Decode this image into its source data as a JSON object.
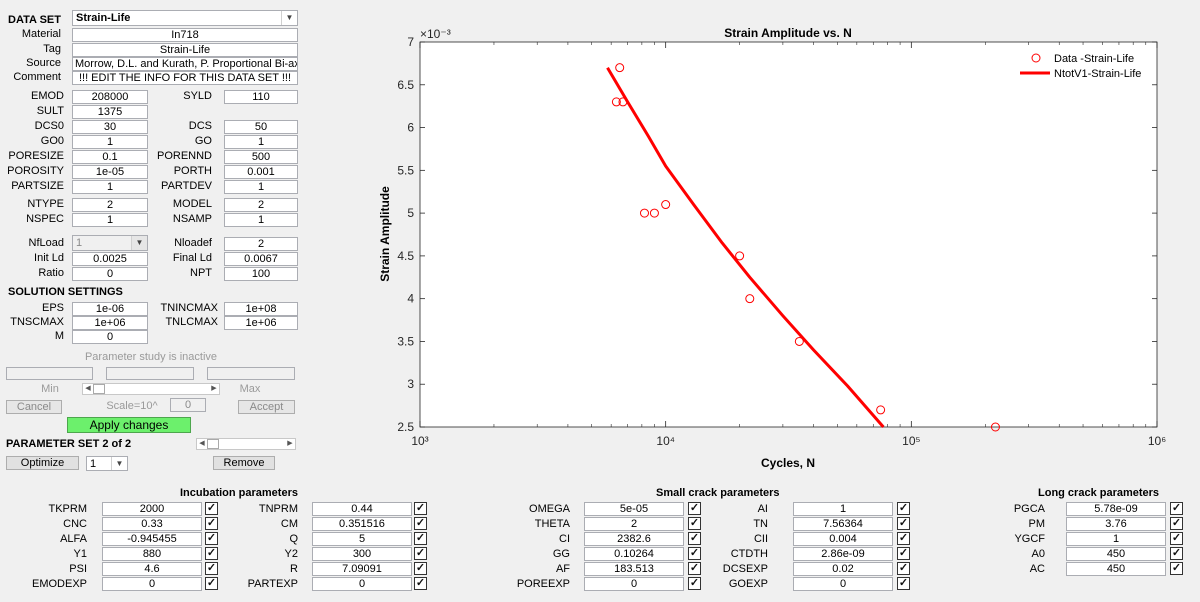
{
  "dataset": {
    "header": "DATA SET",
    "selected": "Strain-Life"
  },
  "info": {
    "material": {
      "label": "Material",
      "value": "In718"
    },
    "tag": {
      "label": "Tag",
      "value": "Strain-Life"
    },
    "source": {
      "label": "Source",
      "value": "Morrow, D.L. and Kurath, P. Proportional Bi-axial t"
    },
    "comment": {
      "label": "Comment",
      "value": "!!! EDIT THE INFO FOR THIS DATA SET !!!"
    }
  },
  "props": {
    "emod": {
      "label": "EMOD",
      "value": "208000"
    },
    "syld": {
      "label": "SYLD",
      "value": "110"
    },
    "sult": {
      "label": "SULT",
      "value": "1375"
    },
    "dcs0": {
      "label": "DCS0",
      "value": "30"
    },
    "dcs": {
      "label": "DCS",
      "value": "50"
    },
    "go0": {
      "label": "GO0",
      "value": "1"
    },
    "go": {
      "label": "GO",
      "value": "1"
    },
    "poresize": {
      "label": "PORESIZE",
      "value": "0.1"
    },
    "porennd": {
      "label": "PORENND",
      "value": "500"
    },
    "porosity": {
      "label": "POROSITY",
      "value": "1e-05"
    },
    "porth": {
      "label": "PORTH",
      "value": "0.001"
    },
    "partsize": {
      "label": "PARTSIZE",
      "value": "1"
    },
    "partdev": {
      "label": "PARTDEV",
      "value": "1"
    },
    "ntype": {
      "label": "NTYPE",
      "value": "2"
    },
    "model": {
      "label": "MODEL",
      "value": "2"
    },
    "nspec": {
      "label": "NSPEC",
      "value": "1"
    },
    "nsamp": {
      "label": "NSAMP",
      "value": "1"
    },
    "nfload": {
      "label": "NfLoad",
      "value": "1"
    },
    "nloadef": {
      "label": "Nloadef",
      "value": "2"
    },
    "initld": {
      "label": "Init Ld",
      "value": "0.0025"
    },
    "finalld": {
      "label": "Final Ld",
      "value": "0.0067"
    },
    "ratio": {
      "label": "Ratio",
      "value": "0"
    },
    "npt": {
      "label": "NPT",
      "value": "100"
    }
  },
  "solution": {
    "header": "SOLUTION SETTINGS",
    "eps": {
      "label": "EPS",
      "value": "1e-06"
    },
    "tnincmax": {
      "label": "TNINCMAX",
      "value": "1e+08"
    },
    "tnscmax": {
      "label": "TNSCMAX",
      "value": "1e+06"
    },
    "tnlcmax": {
      "label": "TNLCMAX",
      "value": "1e+06"
    },
    "m": {
      "label": "M",
      "value": "0"
    }
  },
  "param_study": {
    "status": "Parameter study is inactive",
    "min_label": "Min",
    "max_label": "Max",
    "cancel": "Cancel",
    "scale_label": "Scale=10^",
    "scale_value": "0",
    "accept": "Accept",
    "apply": "Apply changes"
  },
  "param_set": {
    "header": "PARAMETER SET 2 of 2",
    "optimize": "Optimize",
    "set_select": "1",
    "remove": "Remove"
  },
  "chart_data": {
    "type": "scatter",
    "title": "Strain Amplitude vs. N",
    "xlabel": "Cycles, N",
    "ylabel": "Strain Amplitude",
    "xscale": "log",
    "xlim": [
      1000,
      1000000
    ],
    "ylim": [
      2.5,
      7
    ],
    "y_multiplier": "×10⁻³",
    "x_ticks": [
      "10³",
      "10⁴",
      "10⁵",
      "10⁶"
    ],
    "y_ticks": [
      "2.5",
      "3",
      "3.5",
      "4",
      "4.5",
      "5",
      "5.5",
      "6",
      "6.5",
      "7"
    ],
    "legend_position": "top-right",
    "colors": {
      "series": "#ff0000"
    },
    "series": [
      {
        "name": "Data -Strain-Life",
        "kind": "markers",
        "x": [
          6500,
          6300,
          6700,
          8200,
          9000,
          10000,
          20000,
          22000,
          35000,
          75000,
          220000
        ],
        "y": [
          6.7,
          6.3,
          6.3,
          5.0,
          5.0,
          5.1,
          4.5,
          4.0,
          3.5,
          2.7,
          2.5
        ]
      },
      {
        "name": "NtotV1-Strain-Life",
        "kind": "line",
        "x": [
          5800,
          7000,
          8500,
          10000,
          13000,
          17000,
          22000,
          30000,
          40000,
          55000,
          77000
        ],
        "y": [
          6.7,
          6.3,
          5.9,
          5.55,
          5.1,
          4.65,
          4.25,
          3.8,
          3.4,
          2.98,
          2.5
        ]
      }
    ]
  },
  "incubation": {
    "header": "Incubation parameters",
    "rows": [
      {
        "l1": "TKPRM",
        "v1": "2000",
        "l2": "TNPRM",
        "v2": "0.44"
      },
      {
        "l1": "CNC",
        "v1": "0.33",
        "l2": "CM",
        "v2": "0.351516"
      },
      {
        "l1": "ALFA",
        "v1": "-0.945455",
        "l2": "Q",
        "v2": "5"
      },
      {
        "l1": "Y1",
        "v1": "880",
        "l2": "Y2",
        "v2": "300"
      },
      {
        "l1": "PSI",
        "v1": "4.6",
        "l2": "R",
        "v2": "7.09091"
      },
      {
        "l1": "EMODEXP",
        "v1": "0",
        "l2": "PARTEXP",
        "v2": "0"
      }
    ]
  },
  "small_crack": {
    "header": "Small crack parameters",
    "rows": [
      {
        "l1": "OMEGA",
        "v1": "5e-05",
        "l2": "AI",
        "v2": "1"
      },
      {
        "l1": "THETA",
        "v1": "2",
        "l2": "TN",
        "v2": "7.56364"
      },
      {
        "l1": "CI",
        "v1": "2382.6",
        "l2": "CII",
        "v2": "0.004"
      },
      {
        "l1": "GG",
        "v1": "0.10264",
        "l2": "CTDTH",
        "v2": "2.86e-09"
      },
      {
        "l1": "AF",
        "v1": "183.513",
        "l2": "DCSEXP",
        "v2": "0.02"
      },
      {
        "l1": "POREEXP",
        "v1": "0",
        "l2": "GOEXP",
        "v2": "0"
      }
    ]
  },
  "long_crack": {
    "header": "Long crack parameters",
    "rows": [
      {
        "l1": "PGCA",
        "v1": "5.78e-09"
      },
      {
        "l1": "PM",
        "v1": "3.76"
      },
      {
        "l1": "YGCF",
        "v1": "1"
      },
      {
        "l1": "A0",
        "v1": "450"
      },
      {
        "l1": "AC",
        "v1": "450"
      }
    ]
  },
  "checkbox_mark": "✓"
}
